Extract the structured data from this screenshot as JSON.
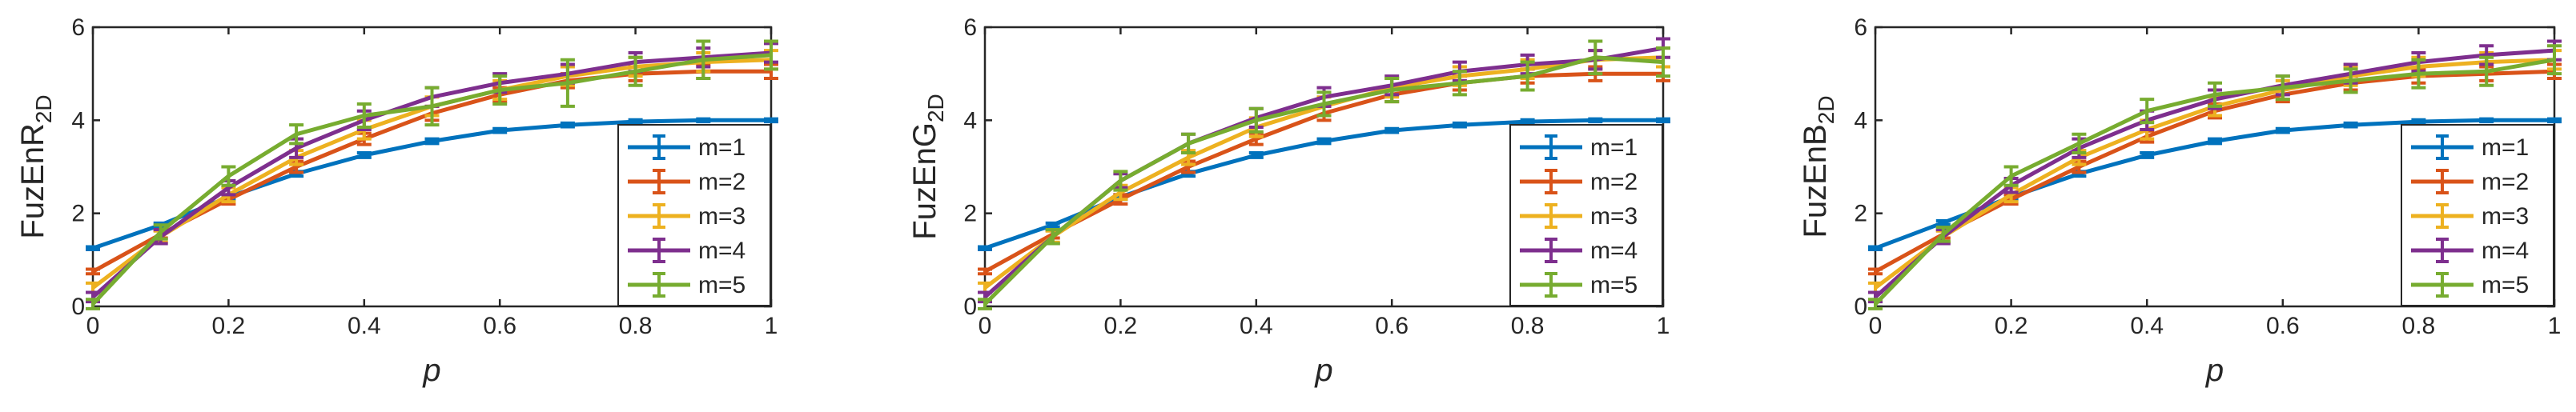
{
  "chart_data": [
    {
      "type": "line",
      "title": "",
      "ylabel_base": "FuzEnR",
      "ylabel_sub": "2D",
      "xlabel": "p",
      "x": [
        0,
        0.1,
        0.2,
        0.3,
        0.4,
        0.5,
        0.6,
        0.7,
        0.8,
        0.9,
        1
      ],
      "xlim": [
        0,
        1
      ],
      "ylim": [
        0,
        6
      ],
      "xticks": [
        "0",
        "0.2",
        "0.4",
        "0.6",
        "0.8",
        "1"
      ],
      "yticks": [
        "0",
        "2",
        "4",
        "6"
      ],
      "grid": false,
      "legend": "bottom-right",
      "series": [
        {
          "name": "m=1",
          "color": "#0072BD",
          "values": [
            1.25,
            1.75,
            2.35,
            2.85,
            3.25,
            3.55,
            3.78,
            3.9,
            3.97,
            4.0,
            4.0
          ],
          "errors": [
            0.03,
            0.04,
            0.05,
            0.05,
            0.05,
            0.05,
            0.04,
            0.04,
            0.04,
            0.03,
            0.03
          ]
        },
        {
          "name": "m=2",
          "color": "#D95319",
          "values": [
            0.75,
            1.55,
            2.3,
            3.0,
            3.6,
            4.15,
            4.55,
            4.85,
            5.0,
            5.05,
            5.05
          ],
          "errors": [
            0.05,
            0.08,
            0.1,
            0.12,
            0.12,
            0.15,
            0.15,
            0.15,
            0.15,
            0.15,
            0.15
          ]
        },
        {
          "name": "m=3",
          "color": "#EDB120",
          "values": [
            0.4,
            1.5,
            2.4,
            3.2,
            3.8,
            4.3,
            4.65,
            4.95,
            5.15,
            5.25,
            5.3
          ],
          "errors": [
            0.1,
            0.12,
            0.15,
            0.15,
            0.2,
            0.2,
            0.2,
            0.2,
            0.2,
            0.2,
            0.2
          ]
        },
        {
          "name": "m=4",
          "color": "#7E2F8E",
          "values": [
            0.2,
            1.5,
            2.55,
            3.4,
            4.0,
            4.5,
            4.8,
            5.0,
            5.25,
            5.35,
            5.45
          ],
          "errors": [
            0.1,
            0.15,
            0.15,
            0.2,
            0.2,
            0.2,
            0.2,
            0.2,
            0.2,
            0.2,
            0.2
          ]
        },
        {
          "name": "m=5",
          "color": "#77AC30",
          "values": [
            0.05,
            1.6,
            2.8,
            3.7,
            4.1,
            4.3,
            4.65,
            4.8,
            5.05,
            5.3,
            5.4
          ],
          "errors": [
            0.1,
            0.15,
            0.2,
            0.2,
            0.25,
            0.4,
            0.3,
            0.5,
            0.3,
            0.4,
            0.3
          ]
        }
      ]
    },
    {
      "type": "line",
      "title": "",
      "ylabel_base": "FuzEnG",
      "ylabel_sub": "2D",
      "xlabel": "p",
      "x": [
        0,
        0.1,
        0.2,
        0.3,
        0.4,
        0.5,
        0.6,
        0.7,
        0.8,
        0.9,
        1
      ],
      "xlim": [
        0,
        1
      ],
      "ylim": [
        0,
        6
      ],
      "xticks": [
        "0",
        "0.2",
        "0.4",
        "0.6",
        "0.8",
        "1"
      ],
      "yticks": [
        "0",
        "2",
        "4",
        "6"
      ],
      "grid": false,
      "legend": "bottom-right",
      "series": [
        {
          "name": "m=1",
          "color": "#0072BD",
          "values": [
            1.25,
            1.75,
            2.35,
            2.85,
            3.25,
            3.55,
            3.78,
            3.9,
            3.97,
            4.0,
            4.0
          ],
          "errors": [
            0.03,
            0.04,
            0.05,
            0.05,
            0.05,
            0.05,
            0.04,
            0.04,
            0.04,
            0.03,
            0.03
          ]
        },
        {
          "name": "m=2",
          "color": "#D95319",
          "values": [
            0.75,
            1.55,
            2.3,
            3.0,
            3.6,
            4.15,
            4.55,
            4.8,
            4.95,
            5.0,
            5.0
          ],
          "errors": [
            0.05,
            0.08,
            0.1,
            0.12,
            0.12,
            0.15,
            0.15,
            0.15,
            0.15,
            0.15,
            0.15
          ]
        },
        {
          "name": "m=3",
          "color": "#EDB120",
          "values": [
            0.4,
            1.5,
            2.45,
            3.2,
            3.85,
            4.3,
            4.7,
            4.95,
            5.1,
            5.3,
            5.35
          ],
          "errors": [
            0.1,
            0.12,
            0.15,
            0.15,
            0.2,
            0.2,
            0.2,
            0.2,
            0.2,
            0.2,
            0.2
          ]
        },
        {
          "name": "m=4",
          "color": "#7E2F8E",
          "values": [
            0.2,
            1.5,
            2.7,
            3.5,
            4.05,
            4.5,
            4.75,
            5.05,
            5.2,
            5.3,
            5.55
          ],
          "errors": [
            0.1,
            0.15,
            0.15,
            0.2,
            0.2,
            0.2,
            0.2,
            0.2,
            0.2,
            0.2,
            0.2
          ]
        },
        {
          "name": "m=5",
          "color": "#77AC30",
          "values": [
            0.05,
            1.5,
            2.7,
            3.5,
            4.0,
            4.35,
            4.65,
            4.8,
            4.95,
            5.35,
            5.25
          ],
          "errors": [
            0.1,
            0.15,
            0.2,
            0.2,
            0.25,
            0.25,
            0.25,
            0.25,
            0.3,
            0.35,
            0.3
          ]
        }
      ]
    },
    {
      "type": "line",
      "title": "",
      "ylabel_base": "FuzEnB",
      "ylabel_sub": "2D",
      "xlabel": "p",
      "x": [
        0,
        0.1,
        0.2,
        0.3,
        0.4,
        0.5,
        0.6,
        0.7,
        0.8,
        0.9,
        1
      ],
      "xlim": [
        0,
        1
      ],
      "ylim": [
        0,
        6
      ],
      "xticks": [
        "0",
        "0.2",
        "0.4",
        "0.6",
        "0.8",
        "1"
      ],
      "yticks": [
        "0",
        "2",
        "4",
        "6"
      ],
      "grid": false,
      "legend": "bottom-right",
      "series": [
        {
          "name": "m=1",
          "color": "#0072BD",
          "values": [
            1.25,
            1.8,
            2.35,
            2.85,
            3.25,
            3.55,
            3.78,
            3.9,
            3.97,
            4.0,
            4.0
          ],
          "errors": [
            0.03,
            0.04,
            0.05,
            0.05,
            0.05,
            0.05,
            0.04,
            0.04,
            0.04,
            0.03,
            0.03
          ]
        },
        {
          "name": "m=2",
          "color": "#D95319",
          "values": [
            0.75,
            1.55,
            2.3,
            3.0,
            3.65,
            4.2,
            4.55,
            4.8,
            4.95,
            5.0,
            5.05
          ],
          "errors": [
            0.05,
            0.08,
            0.1,
            0.12,
            0.12,
            0.15,
            0.15,
            0.15,
            0.15,
            0.15,
            0.15
          ]
        },
        {
          "name": "m=3",
          "color": "#EDB120",
          "values": [
            0.4,
            1.5,
            2.4,
            3.2,
            3.8,
            4.3,
            4.65,
            4.95,
            5.15,
            5.25,
            5.3
          ],
          "errors": [
            0.1,
            0.12,
            0.15,
            0.15,
            0.2,
            0.2,
            0.2,
            0.2,
            0.2,
            0.2,
            0.2
          ]
        },
        {
          "name": "m=4",
          "color": "#7E2F8E",
          "values": [
            0.2,
            1.5,
            2.6,
            3.4,
            4.0,
            4.45,
            4.75,
            5.0,
            5.25,
            5.4,
            5.5
          ],
          "errors": [
            0.1,
            0.15,
            0.15,
            0.2,
            0.2,
            0.2,
            0.2,
            0.2,
            0.2,
            0.2,
            0.2
          ]
        },
        {
          "name": "m=5",
          "color": "#77AC30",
          "values": [
            0.05,
            1.55,
            2.8,
            3.5,
            4.2,
            4.55,
            4.7,
            4.85,
            5.0,
            5.05,
            5.3
          ],
          "errors": [
            0.1,
            0.15,
            0.2,
            0.2,
            0.25,
            0.25,
            0.25,
            0.25,
            0.3,
            0.3,
            0.3
          ]
        }
      ]
    }
  ]
}
